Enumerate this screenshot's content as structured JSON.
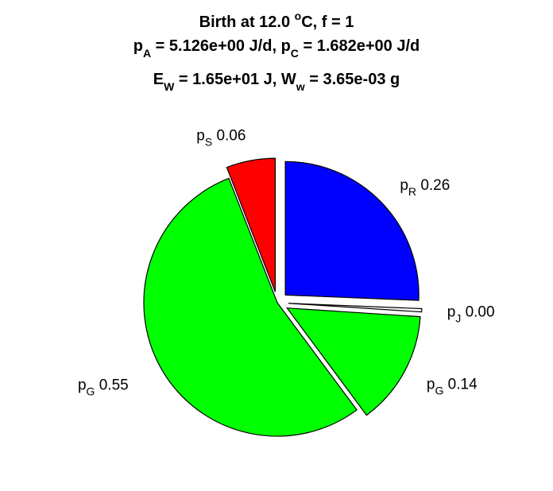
{
  "chart_data": {
    "type": "pie",
    "title": {
      "line1": {
        "pre": "Birth at 12.0 ",
        "sup": "o",
        "post": "C, f = 1"
      },
      "line2": {
        "a_base": "p",
        "a_sub": "A",
        "a_text": " = 5.126e+00 J/d, ",
        "c_base": "p",
        "c_sub": "C",
        "c_text": " = 1.682e+00 J/d"
      },
      "line3": {
        "e_base": "E",
        "e_sub": "W",
        "e_text": " = 1.65e+01 J, ",
        "w_base": "W",
        "w_sub": "w",
        "w_text": " = 3.65e-03 g"
      }
    },
    "slices": [
      {
        "base": "p",
        "sub": "R",
        "label_value": "0.26",
        "value": 0.26,
        "color": "#0000ff",
        "exploded": true
      },
      {
        "base": "p",
        "sub": "J",
        "label_value": "0.00",
        "value": 0.004,
        "color": "#ffffff",
        "exploded": true
      },
      {
        "base": "p",
        "sub": "G",
        "label_value": "0.14",
        "value": 0.14,
        "color": "#00ff00",
        "exploded": true
      },
      {
        "base": "p",
        "sub": "G",
        "label_value": "0.55",
        "value": 0.55,
        "color": "#00ff00",
        "exploded": false
      },
      {
        "base": "p",
        "sub": "S",
        "label_value": "0.06",
        "value": 0.06,
        "color": "#ff0000",
        "exploded": true
      }
    ],
    "start_angle": "12 o'clock",
    "direction": "clockwise",
    "edge_color": "#000000"
  }
}
